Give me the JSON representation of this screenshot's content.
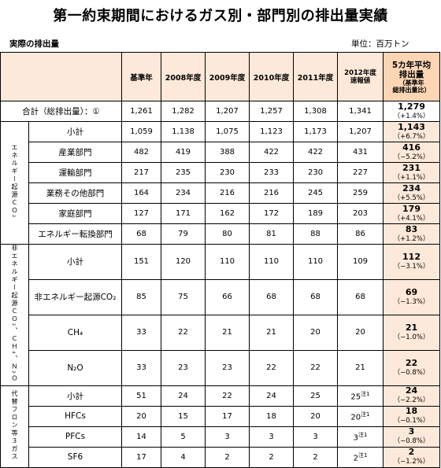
{
  "title": "第一約束期間におけるガス別・部門別の排出量実績",
  "subtitle": "実際の排出量",
  "unit": "単位：百万トン",
  "headers": {
    "base_year": "基準年",
    "y2008": "2008年度",
    "y2009": "2009年度",
    "y2010": "2010年度",
    "y2011": "2011年度",
    "y2012_line1": "2012年度",
    "y2012_line2": "速報値",
    "avg_line1": "5カ年平均",
    "avg_line2": "排出量",
    "avg_line3": "（基準年",
    "avg_line4": "総排出量比）"
  },
  "categories": {
    "energy": "エネルギー起源ＣＯ₂",
    "nonenergy": "非エネルギー起源ＣＯ₂、ＣＨ₄、Ｎ₂Ｏ",
    "fluoro": "代替フロン等３ガス"
  },
  "rows": {
    "total": {
      "label": "合計（総排出量）：①",
      "values": [
        "1,261",
        "1,282",
        "1,207",
        "1,257",
        "1,308",
        "1,341"
      ],
      "avg": "1,279",
      "pct": "（+1.4%）"
    },
    "energy_subtotal": {
      "label": "小計",
      "values": [
        "1,059",
        "1,138",
        "1,075",
        "1,123",
        "1,173",
        "1,207"
      ],
      "avg": "1,143",
      "pct": "（+6.7%）"
    },
    "industry": {
      "label": "産業部門",
      "values": [
        "482",
        "419",
        "388",
        "422",
        "422",
        "431"
      ],
      "avg": "416",
      "pct": "（−5.2%）"
    },
    "transport": {
      "label": "運輸部門",
      "values": [
        "217",
        "235",
        "230",
        "233",
        "230",
        "227"
      ],
      "avg": "231",
      "pct": "（+1.1%）"
    },
    "business": {
      "label": "業務その他部門",
      "values": [
        "164",
        "234",
        "216",
        "216",
        "245",
        "259"
      ],
      "avg": "234",
      "pct": "（+5.5%）"
    },
    "household": {
      "label": "家庭部門",
      "values": [
        "127",
        "171",
        "162",
        "172",
        "189",
        "203"
      ],
      "avg": "179",
      "pct": "（+4.1%）"
    },
    "energy_conv": {
      "label": "エネルギー転換部門",
      "values": [
        "68",
        "79",
        "80",
        "81",
        "88",
        "86"
      ],
      "avg": "83",
      "pct": "（+1.2%）"
    },
    "nonenergy_subtotal": {
      "label": "小計",
      "values": [
        "151",
        "120",
        "110",
        "110",
        "110",
        "109"
      ],
      "avg": "112",
      "pct": "（−3.1%）"
    },
    "nonenergy_co2": {
      "label": "非エネルギー起源CO₂",
      "values": [
        "85",
        "75",
        "66",
        "68",
        "68",
        "68"
      ],
      "avg": "69",
      "pct": "（−1.3%）"
    },
    "ch4": {
      "label": "CH₄",
      "values": [
        "33",
        "22",
        "21",
        "21",
        "20",
        "20"
      ],
      "avg": "21",
      "pct": "（−1.0%）"
    },
    "n2o": {
      "label": "N₂O",
      "values": [
        "33",
        "23",
        "23",
        "22",
        "22",
        "21"
      ],
      "avg": "22",
      "pct": "（−0.8%）"
    },
    "fluoro_subtotal": {
      "label": "小計",
      "values": [
        "51",
        "24",
        "22",
        "24",
        "25",
        "25"
      ],
      "note": "注1",
      "avg": "24",
      "pct": "（−2.2%）"
    },
    "hfcs": {
      "label": "HFCs",
      "values": [
        "20",
        "15",
        "17",
        "18",
        "20",
        "20"
      ],
      "note": "注1",
      "avg": "18",
      "pct": "（−0.1%）"
    },
    "pfcs": {
      "label": "PFCs",
      "values": [
        "14",
        "5",
        "3",
        "3",
        "3",
        "3"
      ],
      "note": "注1",
      "avg": "3",
      "pct": "（−0.8%）"
    },
    "sf6": {
      "label": "SF6",
      "values": [
        "17",
        "4",
        "2",
        "2",
        "2",
        "2"
      ],
      "note": "注1",
      "avg": "2",
      "pct": "（−1.2%）"
    }
  }
}
